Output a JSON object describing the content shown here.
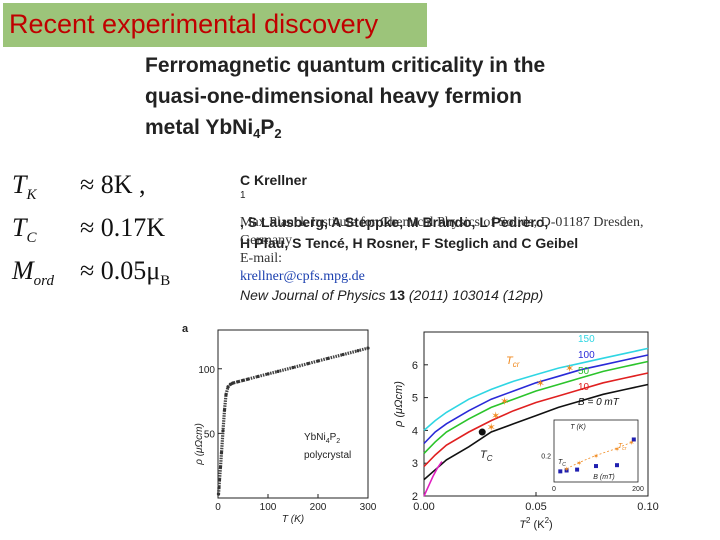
{
  "banner": "Recent experimental discovery",
  "title": {
    "line1": "Ferromagnetic quantum criticality in the",
    "line2": "quasi-one-dimensional heavy fermion",
    "line3_main": "metal YbNi",
    "line3_sub1": "4",
    "line3_mid": "P",
    "line3_sub2": "2"
  },
  "authors": {
    "line1_a": "C Krellner",
    "line1_sup": "1",
    "line1_b": ", S Lausberg, A Steppke, M Brando, L Pedrero,",
    "line2": "H Pfau, S Tencé, H Rosner, F Steglich and C Geibel"
  },
  "affiliation": {
    "line1": "Max Planck Institute for Chemical Physics of Solids, D-01187 Dresden,",
    "line2": "Germany",
    "email_label": "E-mail: ",
    "email": "krellner@cpfs.mpg.de"
  },
  "journal": {
    "name": "New Journal of Physics ",
    "volume": "13",
    "rest": " (2011) 103014 (12pp)"
  },
  "params": [
    {
      "sym": "T",
      "sub": "K",
      "val": "≈ 8K ,"
    },
    {
      "sym": "T",
      "sub": "C",
      "val": "≈ 0.17K"
    },
    {
      "sym": "M",
      "sub": "ord",
      "val": "≈ 0.05μ",
      "valsub": "B"
    }
  ],
  "colors": {
    "banner_bg": "#9cc47a",
    "banner_text": "#c00000",
    "link": "#1a3faf",
    "curve_150": "#2fd6e3",
    "curve_100": "#2a2ad8",
    "curve_50": "#2bc42b",
    "curve_10": "#e02020",
    "curve_0": "#111111",
    "curve_low": "#e020c0",
    "marker": "#f08a20"
  },
  "chart_data": [
    {
      "type": "scatter",
      "panel_label": "a",
      "xlabel": "T (K)",
      "ylabel": "ρ (μΩcm)",
      "xlim": [
        0,
        300
      ],
      "ylim": [
        0,
        130
      ],
      "x_ticks": [
        "0",
        "100",
        "200",
        "300"
      ],
      "y_ticks": [
        "50",
        "100"
      ],
      "annotation": {
        "main": "YbNi",
        "sub1": "4",
        "mid": "P",
        "sub2": "2",
        "line2": "polycrystal"
      },
      "series": [
        {
          "x": [
            1,
            2,
            3,
            5,
            7,
            10,
            13,
            16,
            20,
            25,
            30,
            40,
            50,
            60,
            80,
            100,
            120,
            150,
            180,
            200,
            220,
            250,
            280,
            300
          ],
          "y": [
            3,
            8,
            14,
            24,
            35,
            52,
            68,
            80,
            86,
            88,
            89,
            90,
            91,
            92,
            94,
            96,
            98,
            101,
            104,
            106,
            108,
            111,
            114,
            116
          ]
        }
      ]
    },
    {
      "type": "line",
      "xlabel_main": "T",
      "xlabel_sup": "2",
      "xlabel_unit": " (K",
      "xlabel_unit_sup": "2",
      "xlabel_end": ")",
      "ylabel": "ρ (μΩcm)",
      "xlim": [
        0,
        0.1
      ],
      "ylim": [
        2,
        7
      ],
      "x_ticks": [
        "0.00",
        "0.05",
        "0.10"
      ],
      "y_ticks": [
        "2",
        "3",
        "4",
        "5",
        "6"
      ],
      "curve_labels": [
        "150",
        "100",
        "50",
        "10",
        "B = 0 mT"
      ],
      "tc_label_main": "T",
      "tc_label_sub": "C",
      "tcr_label_main": "T",
      "tcr_label_sub": "cr",
      "series": [
        {
          "name": "150",
          "x": [
            0.0,
            0.005,
            0.01,
            0.02,
            0.03,
            0.04,
            0.05,
            0.06,
            0.07,
            0.08,
            0.09,
            0.1
          ],
          "y": [
            4.0,
            4.3,
            4.55,
            4.95,
            5.25,
            5.5,
            5.7,
            5.9,
            6.05,
            6.2,
            6.35,
            6.5
          ]
        },
        {
          "name": "100",
          "x": [
            0.0,
            0.005,
            0.01,
            0.02,
            0.03,
            0.04,
            0.05,
            0.06,
            0.07,
            0.08,
            0.09,
            0.1
          ],
          "y": [
            3.6,
            3.95,
            4.2,
            4.6,
            4.95,
            5.2,
            5.45,
            5.65,
            5.85,
            6.0,
            6.15,
            6.3
          ]
        },
        {
          "name": "50",
          "x": [
            0.0,
            0.005,
            0.01,
            0.02,
            0.03,
            0.04,
            0.05,
            0.06,
            0.07,
            0.08,
            0.09,
            0.1
          ],
          "y": [
            3.3,
            3.65,
            3.95,
            4.35,
            4.7,
            4.95,
            5.2,
            5.4,
            5.6,
            5.8,
            5.95,
            6.1
          ]
        },
        {
          "name": "10",
          "x": [
            0.0,
            0.005,
            0.01,
            0.02,
            0.03,
            0.04,
            0.05,
            0.06,
            0.07,
            0.08,
            0.09,
            0.1
          ],
          "y": [
            2.9,
            3.25,
            3.55,
            3.95,
            4.3,
            4.6,
            4.85,
            5.05,
            5.25,
            5.45,
            5.6,
            5.75
          ]
        },
        {
          "name": "B = 0 mT",
          "x": [
            0.0,
            0.005,
            0.01,
            0.02,
            0.03,
            0.04,
            0.05,
            0.06,
            0.07,
            0.08,
            0.09,
            0.1
          ],
          "y": [
            2.5,
            2.8,
            3.1,
            3.5,
            3.95,
            4.2,
            4.45,
            4.7,
            4.9,
            5.1,
            5.25,
            5.4
          ]
        },
        {
          "x": [
            0.0,
            0.002,
            0.004,
            0.006,
            0.008
          ],
          "y": [
            2.0,
            2.3,
            2.6,
            2.85,
            3.05
          ]
        }
      ],
      "tcr_markers": [
        {
          "x": 0.03,
          "y": 4.1
        },
        {
          "x": 0.032,
          "y": 4.45
        },
        {
          "x": 0.036,
          "y": 4.9
        },
        {
          "x": 0.052,
          "y": 5.45
        },
        {
          "x": 0.065,
          "y": 5.9
        }
      ],
      "tc_marker": {
        "x": 0.026,
        "y": 3.95
      },
      "inset": {
        "xlabel": "B (mT)",
        "ylabel": "T (K)",
        "xlim": [
          0,
          200
        ],
        "ylim": [
          0,
          0.7
        ],
        "x_ticks": [
          "0",
          "200"
        ],
        "y_tick_label": "0.2",
        "blue_points": {
          "x": [
            15,
            30,
            55,
            100,
            150,
            190
          ],
          "y": [
            0.12,
            0.13,
            0.14,
            0.18,
            0.19,
            0.48
          ]
        },
        "orange_points": {
          "x": [
            30,
            60,
            100,
            150,
            185
          ],
          "y": [
            0.15,
            0.22,
            0.3,
            0.38,
            0.45
          ]
        }
      }
    }
  ]
}
